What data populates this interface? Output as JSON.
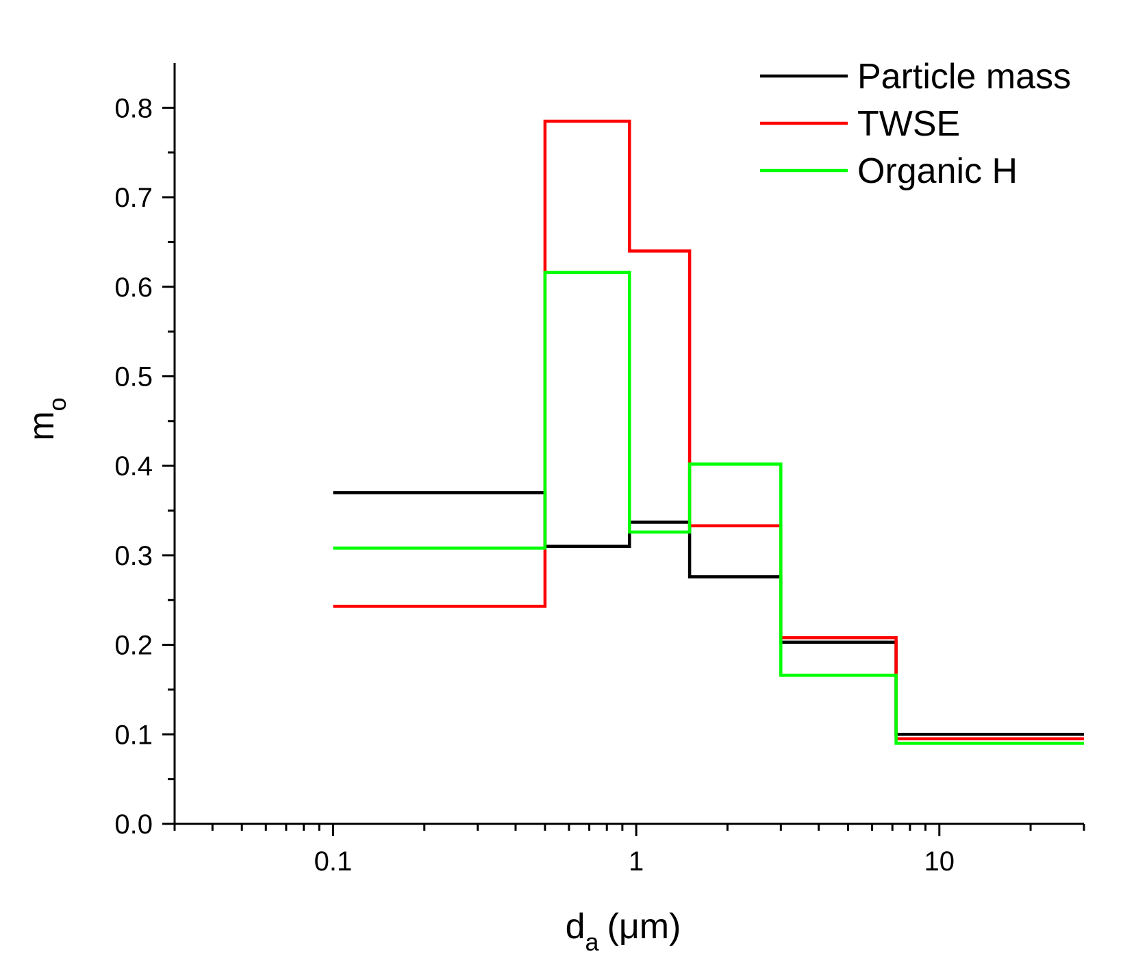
{
  "chart_data": {
    "type": "line",
    "style": "step",
    "title": "",
    "xlabel": {
      "main": "d",
      "sub": "a",
      "suffix": "(μm)"
    },
    "ylabel": {
      "main": "m",
      "sub": "o"
    },
    "xscale": "log",
    "xlim": [
      0.03,
      30
    ],
    "ylim": [
      0,
      0.85
    ],
    "x_ticks": [
      {
        "value": 0.1,
        "label": "0.1"
      },
      {
        "value": 1,
        "label": "1"
      },
      {
        "value": 10,
        "label": "10"
      }
    ],
    "y_ticks": [
      {
        "value": 0.0,
        "label": "0.0"
      },
      {
        "value": 0.1,
        "label": "0.1"
      },
      {
        "value": 0.2,
        "label": "0.2"
      },
      {
        "value": 0.3,
        "label": "0.3"
      },
      {
        "value": 0.4,
        "label": "0.4"
      },
      {
        "value": 0.5,
        "label": "0.5"
      },
      {
        "value": 0.6,
        "label": "0.6"
      },
      {
        "value": 0.7,
        "label": "0.7"
      },
      {
        "value": 0.8,
        "label": "0.8"
      }
    ],
    "bin_edges": [
      0.1,
      0.5,
      0.95,
      1.5,
      3.0,
      7.2,
      30
    ],
    "series": [
      {
        "name": "Particle mass",
        "color": "#000000",
        "values": [
          0.37,
          0.31,
          0.337,
          0.276,
          0.203,
          0.1
        ]
      },
      {
        "name": "TWSE",
        "color": "#ff0000",
        "values": [
          0.243,
          0.785,
          0.64,
          0.333,
          0.208,
          0.095
        ]
      },
      {
        "name": "Organic H",
        "color": "#00ff00",
        "values": [
          0.308,
          0.616,
          0.326,
          0.402,
          0.166,
          0.09
        ]
      }
    ],
    "legend_position": "top-right",
    "grid": false
  }
}
